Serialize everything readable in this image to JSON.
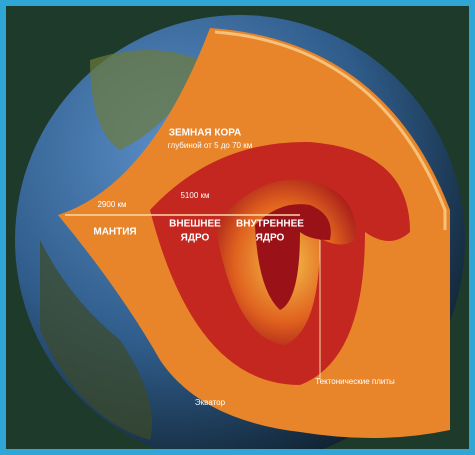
{
  "labels": {
    "crust": "ЗЕМНАЯ КОРА",
    "crust_depth": "глубиной от 5 до 70 км",
    "depth_mantle": "2900 км",
    "depth_outer_core": "5100 км",
    "mantle": "МАНТИЯ",
    "outer_core": [
      "ВНЕШНЕЕ",
      "ЯДРО"
    ],
    "inner_core": [
      "ВНУТРЕННЕЕ",
      "ЯДРО"
    ],
    "plates": "Тектонические плиты",
    "equator": "Экватор"
  }
}
